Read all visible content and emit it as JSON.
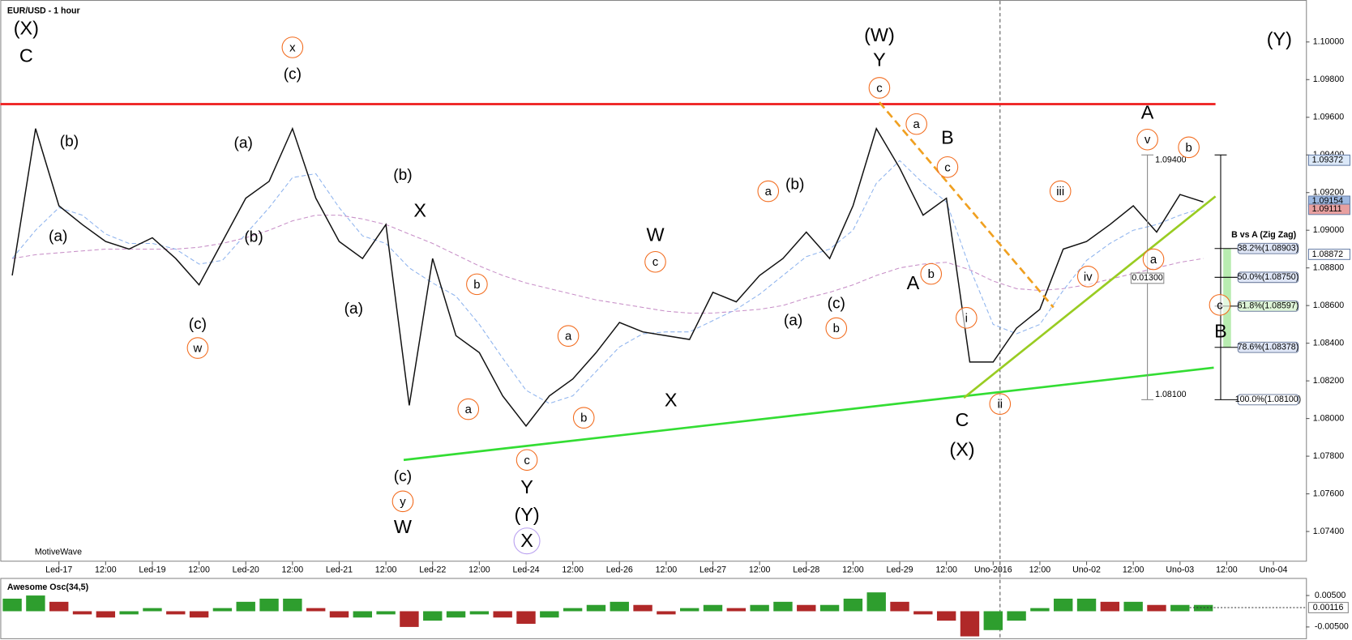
{
  "chart_data": [
    {
      "type": "line",
      "title": "EUR/USD - 1 hour",
      "watermark": "MotiveWave",
      "categories": [
        null,
        null,
        "Led-17",
        null,
        "12:00",
        null,
        "Led-19",
        null,
        "12:00",
        null,
        "Led-20",
        null,
        "12:00",
        null,
        "Led-21",
        null,
        "12:00",
        null,
        "Led-22",
        null,
        "12:00",
        null,
        "Led-24",
        null,
        "12:00",
        null,
        "Led-26",
        null,
        "12:00",
        null,
        "Led-27",
        null,
        "12:00",
        null,
        "Led-28",
        null,
        "12:00",
        null,
        "Led-29",
        null,
        "12:00",
        null,
        "Uno-2016",
        null,
        "12:00",
        null,
        "Uno-02",
        null,
        "12:00",
        null,
        "Uno-03",
        null,
        "12:00",
        null,
        "Uno-04",
        null
      ],
      "series": [
        {
          "color": "#111111",
          "values": [
            1.0876,
            1.0954,
            1.0913,
            1.0903,
            1.0894,
            1.089,
            1.0896,
            1.0885,
            1.0871,
            1.0894,
            1.0917,
            1.0926,
            1.0954,
            1.0917,
            1.0894,
            1.0885,
            1.0903,
            1.0807,
            1.0885,
            1.0844,
            1.0835,
            1.0812,
            1.0796,
            1.0812,
            1.0821,
            1.0835,
            1.0851,
            1.0846,
            1.0844,
            1.0842,
            1.0867,
            1.0862,
            1.0876,
            1.0885,
            1.0899,
            1.0885,
            1.0913,
            1.0954,
            1.0933,
            1.0908,
            1.0917,
            1.083,
            1.083,
            1.0848,
            1.0858,
            1.089,
            1.0894,
            1.0903,
            1.0913,
            1.0899,
            1.0919,
            1.0915,
            null,
            null,
            null,
            null
          ]
        },
        {
          "color": "#8fb4ee",
          "dashed": true,
          "values": [
            1.0885,
            1.09,
            1.0912,
            1.0908,
            1.0898,
            1.0893,
            1.0893,
            1.089,
            1.0882,
            1.0884,
            1.0898,
            1.0912,
            1.0928,
            1.093,
            1.0912,
            1.0897,
            1.0893,
            1.088,
            1.0872,
            1.0865,
            1.085,
            1.0832,
            1.0815,
            1.0808,
            1.0812,
            1.0825,
            1.0838,
            1.0845,
            1.0846,
            1.0846,
            1.0852,
            1.0858,
            1.0866,
            1.0876,
            1.0886,
            1.089,
            1.09,
            1.0925,
            1.0937,
            1.0925,
            1.0915,
            1.088,
            1.085,
            1.0845,
            1.085,
            1.0868,
            1.0884,
            1.0893,
            1.09,
            1.0903,
            1.0908,
            1.0912,
            null,
            null,
            null,
            null
          ]
        },
        {
          "color": "#c890c8",
          "dashed": true,
          "values": [
            1.0885,
            1.0887,
            1.0888,
            1.0889,
            1.089,
            1.089,
            1.089,
            1.089,
            1.0891,
            1.0893,
            1.0896,
            1.09,
            1.0905,
            1.0908,
            1.0908,
            1.0906,
            1.0903,
            1.0898,
            1.0893,
            1.0887,
            1.0881,
            1.0876,
            1.0872,
            1.0869,
            1.0866,
            1.0863,
            1.0861,
            1.0859,
            1.0857,
            1.0856,
            1.0856,
            1.0857,
            1.0858,
            1.086,
            1.0864,
            1.0867,
            1.0871,
            1.0876,
            1.088,
            1.0882,
            1.0883,
            1.0879,
            1.0873,
            1.0869,
            1.0868,
            1.0869,
            1.0871,
            1.0874,
            1.0877,
            1.088,
            1.0883,
            1.0885,
            null,
            null,
            null,
            null
          ]
        }
      ],
      "ylim": [
        1.0724,
        1.102
      ],
      "yticks": [
        {
          "value": 1.1,
          "label": "1.10000"
        },
        {
          "value": 1.098,
          "label": "1.09800"
        },
        {
          "value": 1.096,
          "label": "1.09600"
        },
        {
          "value": 1.094,
          "label": "1.09400"
        },
        {
          "value": 1.092,
          "label": "1.09200"
        },
        {
          "value": 1.09,
          "label": "1.09000"
        },
        {
          "value": 1.088,
          "label": "1.08800"
        },
        {
          "value": 1.086,
          "label": "1.08600"
        },
        {
          "value": 1.084,
          "label": "1.08400"
        },
        {
          "value": 1.082,
          "label": "1.08200"
        },
        {
          "value": 1.08,
          "label": "1.08000"
        },
        {
          "value": 1.078,
          "label": "1.07800"
        },
        {
          "value": 1.076,
          "label": "1.07600"
        },
        {
          "value": 1.074,
          "label": "1.07400"
        }
      ],
      "price_markers": [
        {
          "value": 1.09372,
          "color": "#dbe8f8"
        },
        {
          "value": 1.09154,
          "color": "#9db8e0"
        },
        {
          "value": 1.09111,
          "color": "#e8a0a0"
        },
        {
          "value": 1.08872,
          "color": "#ffffff"
        }
      ],
      "lines": [
        {
          "color": "#ee1c1c",
          "values": [
            1.0967,
            1.0967
          ]
        },
        {
          "color": "#33dd33",
          "values": [
            1.0778,
            1.0827
          ]
        },
        {
          "color": "#99cc22",
          "values": [
            1.0811,
            1.0918
          ]
        },
        {
          "color": "#f0a020",
          "dashed": true,
          "values": [
            1.0968,
            1.0859
          ]
        }
      ],
      "measure": {
        "high": {
          "value": 1.094,
          "label": "1.09400"
        },
        "low": {
          "value": 1.081,
          "label": "1.08100"
        },
        "range": {
          "value": 0.013,
          "label": "0.01300"
        }
      },
      "fib_title": "B vs A (Zig Zag)",
      "fib_levels": [
        {
          "value": 1.08903,
          "label": "38.2%(1.08903)"
        },
        {
          "value": 1.0875,
          "label": "50.0%(1.08750)"
        },
        {
          "value": 1.08597,
          "label": "61.8%(1.08597)"
        },
        {
          "value": 1.08378,
          "label": "78.6%(1.08378)"
        },
        {
          "value": 1.081,
          "label": "100.0%(1.08100)"
        }
      ],
      "wave_labels": [
        {
          "color": "#2bb5ea",
          "circled": false,
          "labels": [
            "(X)",
            "(W)",
            "(Y)",
            "(X)",
            "(Y)"
          ]
        },
        {
          "color": "#9acd32",
          "circled": false,
          "labels": [
            "C",
            "Y",
            "B",
            "A",
            "X",
            "W",
            "A",
            "X",
            "C",
            "Y",
            "W",
            "B"
          ]
        },
        {
          "color": "#e020c8",
          "circled": false,
          "labels": [
            "(c)",
            "(b)",
            "(a)",
            "(b)",
            "(b)",
            "(a)",
            "(b)",
            "(a)",
            "(c)",
            "(a)",
            "(c)",
            "(c)"
          ]
        },
        {
          "color": "#f26b1d",
          "circled": true,
          "labels": [
            "x",
            "c",
            "a",
            "c",
            "v",
            "b",
            "a",
            "iii",
            "b",
            "c",
            "a",
            "b",
            "a",
            "iv",
            "c",
            "i",
            "b",
            "w",
            "a",
            "b",
            "ii",
            "c",
            "y"
          ]
        },
        {
          "color": "#b9a0f0",
          "circled": true,
          "labels": [
            "X"
          ]
        }
      ]
    },
    {
      "type": "bar",
      "title": "Awesome Osc(34,5)",
      "up_color": "#2e9e2e",
      "down_color": "#b02828",
      "values": [
        0.004,
        0.005,
        0.003,
        -0.001,
        -0.002,
        -0.001,
        0.001,
        -0.001,
        -0.002,
        0.001,
        0.003,
        0.004,
        0.004,
        0.001,
        -0.002,
        -0.002,
        -0.001,
        -0.005,
        -0.003,
        -0.002,
        -0.001,
        -0.002,
        -0.004,
        -0.002,
        0.001,
        0.002,
        0.003,
        0.002,
        -0.001,
        0.001,
        0.002,
        0.001,
        0.002,
        0.003,
        0.002,
        0.002,
        0.004,
        0.006,
        0.003,
        -0.001,
        -0.003,
        -0.008,
        -0.006,
        -0.003,
        0.001,
        0.004,
        0.004,
        0.003,
        0.003,
        0.002,
        0.002,
        0.002,
        null,
        null,
        null,
        null
      ],
      "ylim": [
        -0.0086,
        0.0103
      ],
      "yticks": [
        {
          "value": 0.005,
          "label": "0.00500"
        },
        {
          "value": -0.005,
          "label": "-0.00500"
        }
      ],
      "marker": {
        "value": 0.00116,
        "label": "0.00116"
      }
    }
  ]
}
